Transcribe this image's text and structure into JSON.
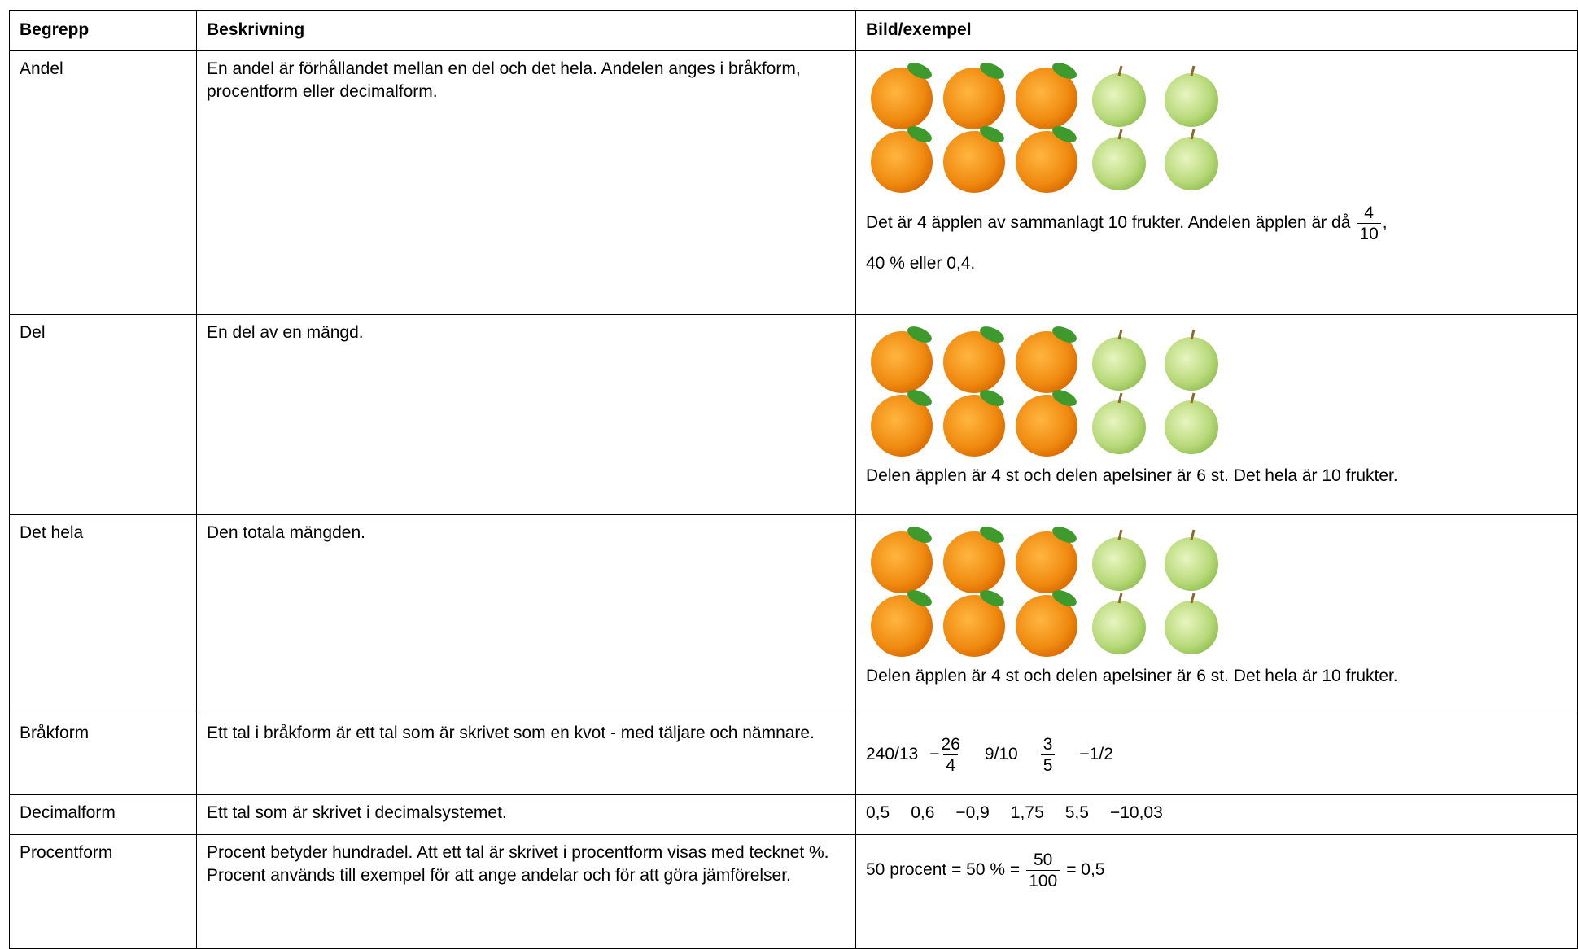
{
  "table": {
    "headers": [
      "Begrepp",
      "Beskrivning",
      "Bild/exempel"
    ],
    "rows": [
      {
        "term": "Andel",
        "description": "En andel är förhållandet mellan en del och det hela. Andelen anges i bråkform, procentform eller decimalform.",
        "example": {
          "text": "Det är 4 äpplen av sammanlagt 10 frukter. Andelen äpplen är då",
          "fraction": [
            "4",
            "10"
          ],
          "after": ",",
          "line2": "40 % eller 0,4."
        }
      },
      {
        "term": "Del",
        "description": "En del av en mängd.",
        "example": {
          "text": "Delen äpplen är 4 st och delen apelsiner är 6 st. Det hela är 10 frukter."
        }
      },
      {
        "term": "Det hela",
        "description": "Den totala mängden.",
        "example": {
          "text": "Delen äpplen är 4 st och delen apelsiner är 6 st. Det hela är 10 frukter."
        }
      },
      {
        "term": "Bråkform",
        "description": "Ett tal i bråkform är ett tal som är skrivet som en kvot - med täljare och nämnare.",
        "example": {
          "item1": "240/13",
          "sign": "−",
          "fraction1": [
            "26",
            "4"
          ],
          "item2": "9/10",
          "fraction2": [
            "3",
            "5"
          ],
          "item3": "−1/2"
        }
      },
      {
        "term": "Decimalform",
        "description": "Ett tal som är skrivet i decimalsystemet.",
        "example": {
          "items": [
            "0,5",
            "0,6",
            "−0,9",
            "1,75",
            "5,5",
            "−10,03"
          ]
        }
      },
      {
        "term": "Procentform",
        "description": "Procent betyder hundradel. Att ett tal är skrivet i procentform visas med tecknet %. Procent används till exempel för att ange andelar och för att göra jämförelser.",
        "example": {
          "before": "50 procent = 50 % =",
          "fraction": [
            "50",
            "100"
          ],
          "after": "= 0,5"
        }
      }
    ]
  }
}
